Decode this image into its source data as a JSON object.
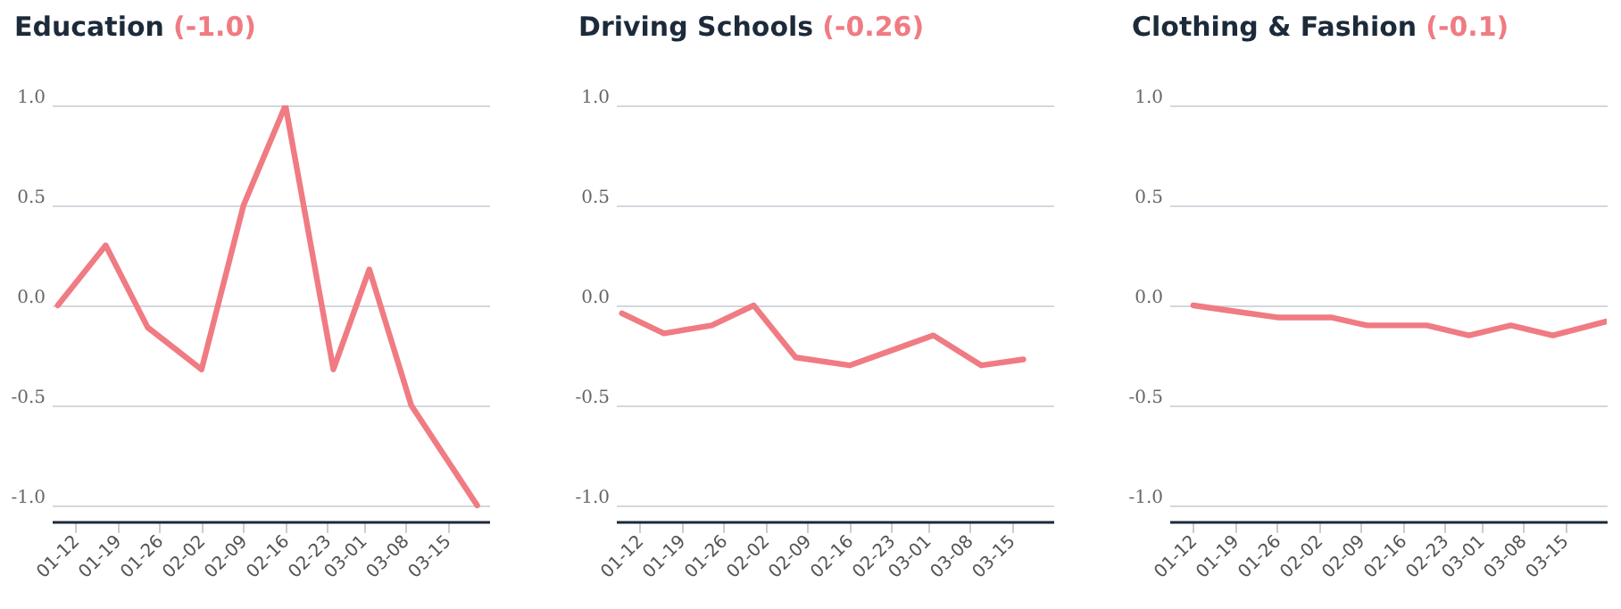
{
  "chart_data": [
    {
      "type": "line",
      "title": "Education",
      "subtitle": "(-1.0)",
      "color": "#f07b82",
      "grid": "y",
      "x": [
        "--01-09",
        "--01-17",
        "--01-24",
        "--02-02",
        "--02-09",
        "--02-16",
        "--02-24",
        "--03-02",
        "--03-09",
        "--03-20"
      ],
      "values": [
        0,
        0.3,
        -0.11,
        -0.32,
        0.5,
        1.0,
        -0.32,
        0.18,
        -0.5,
        -1.0
      ],
      "xlim": [
        "--01-08",
        "--03-22"
      ],
      "xticks": [
        {
          "value": "--01-12",
          "label": "01-12"
        },
        {
          "value": "--01-19",
          "label": "01-19"
        },
        {
          "value": "--01-26",
          "label": "01-26"
        },
        {
          "value": "--02-02",
          "label": "02-02"
        },
        {
          "value": "--02-09",
          "label": "02-09"
        },
        {
          "value": "--02-16",
          "label": "02-16"
        },
        {
          "value": "--02-23",
          "label": "02-23"
        },
        {
          "value": "--03-01",
          "label": "03-01"
        },
        {
          "value": "--03-08",
          "label": "03-08"
        },
        {
          "value": "--03-15",
          "label": "03-15"
        }
      ],
      "ylim": [
        -1.08,
        1.0
      ],
      "yticks": [
        {
          "value": -1,
          "label": "-1.0"
        },
        {
          "value": -0.5,
          "label": "-0.5"
        },
        {
          "value": 0,
          "label": "0.0"
        },
        {
          "value": 0.5,
          "label": "0.5"
        },
        {
          "value": 1,
          "label": "1.0"
        }
      ]
    },
    {
      "type": "line",
      "title": "Driving Schools",
      "subtitle": "(-0.26)",
      "color": "#f07b82",
      "grid": "y",
      "x": [
        "--01-09",
        "--01-16",
        "--01-24",
        "--01-31",
        "--02-07",
        "--02-16",
        "--03-02",
        "--03-10",
        "--03-17"
      ],
      "values": [
        -0.04,
        -0.14,
        -0.1,
        0,
        -0.26,
        -0.3,
        -0.15,
        -0.3,
        -0.27
      ],
      "xlim": [
        "--01-08",
        "--03-22"
      ],
      "xticks": [
        {
          "value": "--01-12",
          "label": "01-12"
        },
        {
          "value": "--01-19",
          "label": "01-19"
        },
        {
          "value": "--01-26",
          "label": "01-26"
        },
        {
          "value": "--02-02",
          "label": "02-02"
        },
        {
          "value": "--02-09",
          "label": "02-09"
        },
        {
          "value": "--02-16",
          "label": "02-16"
        },
        {
          "value": "--02-23",
          "label": "02-23"
        },
        {
          "value": "--03-01",
          "label": "03-01"
        },
        {
          "value": "--03-08",
          "label": "03-08"
        },
        {
          "value": "--03-15",
          "label": "03-15"
        }
      ],
      "ylim": [
        -1.08,
        1.0
      ],
      "yticks": [
        {
          "value": -1,
          "label": "-1.0"
        },
        {
          "value": -0.5,
          "label": "-0.5"
        },
        {
          "value": 0,
          "label": "0.0"
        },
        {
          "value": 0.5,
          "label": "0.5"
        },
        {
          "value": 1,
          "label": "1.0"
        }
      ]
    },
    {
      "type": "line",
      "title": "Clothing & Fashion",
      "subtitle": "(-0.1)",
      "color": "#f07b82",
      "grid": "y",
      "x": [
        "--01-12",
        "--01-19",
        "--01-26",
        "--02-04",
        "--02-10",
        "--02-20",
        "--02-27",
        "--03-06",
        "--03-13",
        "--03-22"
      ],
      "values": [
        0,
        -0.03,
        -0.06,
        -0.06,
        -0.1,
        -0.1,
        -0.15,
        -0.1,
        -0.15,
        -0.08
      ],
      "xlim": [
        "--01-08",
        "--03-22"
      ],
      "xticks": [
        {
          "value": "--01-12",
          "label": "01-12"
        },
        {
          "value": "--01-19",
          "label": "01-19"
        },
        {
          "value": "--01-26",
          "label": "01-26"
        },
        {
          "value": "--02-02",
          "label": "02-02"
        },
        {
          "value": "--02-09",
          "label": "02-09"
        },
        {
          "value": "--02-16",
          "label": "02-16"
        },
        {
          "value": "--02-23",
          "label": "02-23"
        },
        {
          "value": "--03-01",
          "label": "03-01"
        },
        {
          "value": "--03-08",
          "label": "03-08"
        },
        {
          "value": "--03-15",
          "label": "03-15"
        }
      ],
      "ylim": [
        -1.08,
        1.0
      ],
      "yticks": [
        {
          "value": -1,
          "label": "-1.0"
        },
        {
          "value": -0.5,
          "label": "-0.5"
        },
        {
          "value": 0,
          "label": "0.0"
        },
        {
          "value": 0.5,
          "label": "0.5"
        },
        {
          "value": 1,
          "label": "1.0"
        }
      ]
    }
  ]
}
